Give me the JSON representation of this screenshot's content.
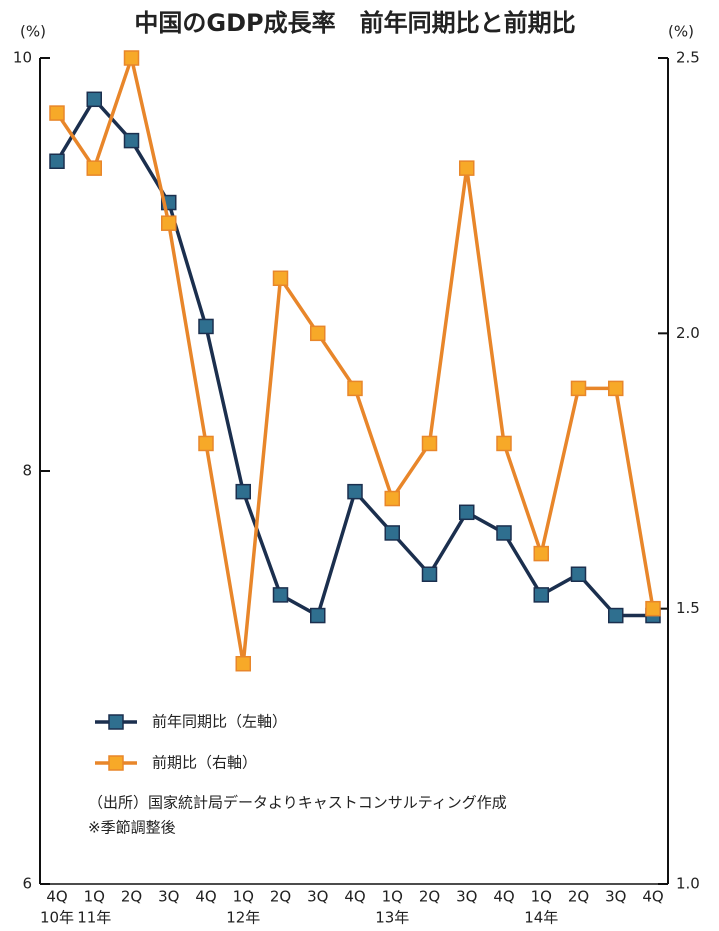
{
  "chart_data": {
    "type": "line",
    "title": "中国のGDP成長率　前年同期比と前期比",
    "y_unit": "(%)",
    "y2_unit": "(%)",
    "categories": [
      "4Q",
      "1Q",
      "2Q",
      "3Q",
      "4Q",
      "1Q",
      "2Q",
      "3Q",
      "4Q",
      "1Q",
      "2Q",
      "3Q",
      "4Q",
      "1Q",
      "2Q",
      "3Q",
      "4Q"
    ],
    "category_years": [
      "10年",
      "11年",
      null,
      null,
      null,
      "12年",
      null,
      null,
      null,
      "13年",
      null,
      null,
      null,
      "14年",
      null,
      null,
      null
    ],
    "series": [
      {
        "name": "前年同期比（左軸）",
        "color": "#1b2f4e",
        "marker_color": "#2f6f8f",
        "values": [
          9.5,
          9.8,
          9.6,
          9.3,
          8.7,
          7.9,
          7.4,
          7.3,
          7.9,
          7.7,
          7.5,
          7.8,
          7.7,
          7.4,
          7.5,
          7.3,
          7.3
        ]
      },
      {
        "name": "前期比（右軸）",
        "color": "#e8862a",
        "marker_color": "#f7a928",
        "axis": "y2",
        "values": [
          2.4,
          2.3,
          2.5,
          2.2,
          1.8,
          1.4,
          2.1,
          2.0,
          1.9,
          1.7,
          1.8,
          2.3,
          1.8,
          1.6,
          1.9,
          1.9,
          1.5
        ]
      }
    ],
    "ylim": [
      6,
      10
    ],
    "yticks": [
      6,
      8,
      10
    ],
    "y2lim": [
      1.0,
      2.5
    ],
    "y2ticks": [
      {
        "value": 1.0,
        "label": "1.0"
      },
      1.5,
      {
        "value": 2.0,
        "label": "2.0"
      },
      2.5
    ],
    "notes": [
      "（出所）国家統計局データよりキャストコンサルティング作成",
      "※季節調整後"
    ]
  }
}
